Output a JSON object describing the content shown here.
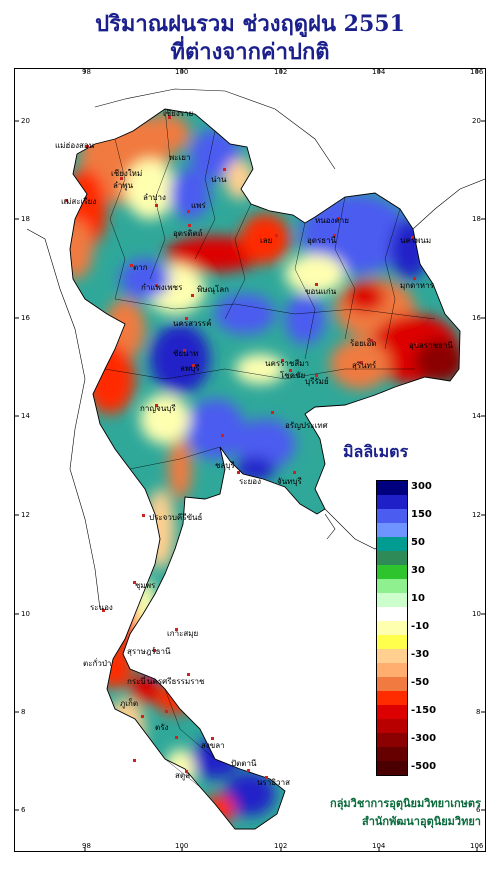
{
  "title_line1": "ปริมาณฝนรวม ช่วงฤดูฝน 2551",
  "title_line2": "ที่ต่างจากค่าปกติ",
  "unit_label": "มิลลิเมตร",
  "longitude_ticks": [
    "98",
    "100",
    "102",
    "104",
    "106"
  ],
  "latitude_ticks": [
    "20",
    "18",
    "16",
    "14",
    "12",
    "10",
    "8",
    "6"
  ],
  "legend": [
    {
      "label": "300",
      "color": "#00007f"
    },
    {
      "label": "",
      "color": "#2020c8"
    },
    {
      "label": "150",
      "color": "#4b5cf0"
    },
    {
      "label": "",
      "color": "#6f94ff"
    },
    {
      "label": "50",
      "color": "#009b91"
    },
    {
      "label": "",
      "color": "#2e8b57"
    },
    {
      "label": "30",
      "color": "#2ec42e"
    },
    {
      "label": "",
      "color": "#8ef08e"
    },
    {
      "label": "10",
      "color": "#ccffcc"
    },
    {
      "label": "",
      "color": "#ffffff"
    },
    {
      "label": "-10",
      "color": "#ffffb0"
    },
    {
      "label": "",
      "color": "#ffff4c"
    },
    {
      "label": "-30",
      "color": "#ffd090"
    },
    {
      "label": "",
      "color": "#ffae70"
    },
    {
      "label": "-50",
      "color": "#f07a40"
    },
    {
      "label": "",
      "color": "#ff2c00"
    },
    {
      "label": "-150",
      "color": "#dd0000"
    },
    {
      "label": "",
      "color": "#b80000"
    },
    {
      "label": "-300",
      "color": "#8b0000"
    },
    {
      "label": "",
      "color": "#660000"
    },
    {
      "label": "-500",
      "color": "#4a0000"
    }
  ],
  "credit_line1": "กลุ่มวิชาการอุตุนิยมวิทยาเกษตร",
  "credit_line2": "สำนักพัฒนาอุตุนิยมวิทยา",
  "places": [
    {
      "name": "เชียงราย"
    },
    {
      "name": "แม่ฮ่องสอน"
    },
    {
      "name": "เชียงใหม่"
    },
    {
      "name": "ลำพูน"
    },
    {
      "name": "ลำปาง"
    },
    {
      "name": "พะเยา"
    },
    {
      "name": "น่าน"
    },
    {
      "name": "แพร่"
    },
    {
      "name": "แม่สะเรียง"
    },
    {
      "name": "อุตรดิตถ์"
    },
    {
      "name": "ตาก"
    },
    {
      "name": "หนองคาย"
    },
    {
      "name": "อุดรธานี"
    },
    {
      "name": "นครพนม"
    },
    {
      "name": "เลย"
    },
    {
      "name": "มุกดาหาร"
    },
    {
      "name": "ขอนแก่น"
    },
    {
      "name": "กำแพงเพชร"
    },
    {
      "name": "พิษณุโลก"
    },
    {
      "name": "นครสวรรค์"
    },
    {
      "name": "อุบลราชธานี"
    },
    {
      "name": "ร้อยเอ็ด"
    },
    {
      "name": "สุรินทร์"
    },
    {
      "name": "ชัยนาท"
    },
    {
      "name": "ลพบุรี"
    },
    {
      "name": "นครราชสีมา"
    },
    {
      "name": "โชคชัย"
    },
    {
      "name": "บุรีรัมย์"
    },
    {
      "name": "กาญจนบุรี"
    },
    {
      "name": "อรัญประเทศ"
    },
    {
      "name": "ชลบุรี"
    },
    {
      "name": "ระยอง"
    },
    {
      "name": "จันทบุรี"
    },
    {
      "name": "ประจวบคีรีขันธ์"
    },
    {
      "name": "ชุมพร"
    },
    {
      "name": "ระนอง"
    },
    {
      "name": "เกาะสมุย"
    },
    {
      "name": "สุราษฎร์ธานี"
    },
    {
      "name": "ตะกั่วป่า"
    },
    {
      "name": "ภูเก็ต"
    },
    {
      "name": "นครศรีธรรมราช"
    },
    {
      "name": "กระบี่"
    },
    {
      "name": "ตรัง"
    },
    {
      "name": "สงขลา"
    },
    {
      "name": "ปัตตานี"
    },
    {
      "name": "สตูล"
    },
    {
      "name": "นราธิวาส"
    }
  ]
}
